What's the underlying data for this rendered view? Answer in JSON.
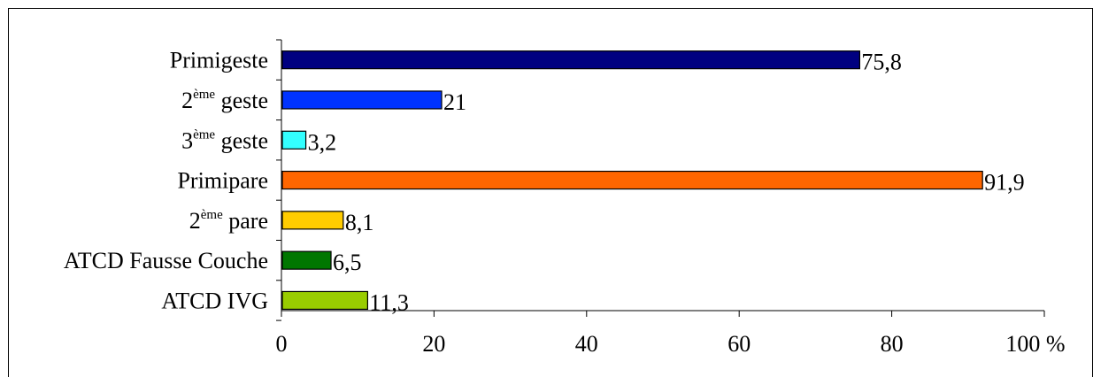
{
  "chart_data": {
    "type": "bar",
    "orientation": "horizontal",
    "categories": [
      {
        "pre": "Primigeste",
        "sup": "",
        "post": ""
      },
      {
        "pre": "2",
        "sup": "ème",
        "post": " geste"
      },
      {
        "pre": "3",
        "sup": "ème",
        "post": " geste"
      },
      {
        "pre": "Primipare",
        "sup": "",
        "post": ""
      },
      {
        "pre": "2",
        "sup": "ème",
        "post": " pare"
      },
      {
        "pre": "ATCD Fausse Couche",
        "sup": "",
        "post": ""
      },
      {
        "pre": "ATCD IVG",
        "sup": "",
        "post": ""
      }
    ],
    "values": [
      75.8,
      21,
      3.2,
      91.9,
      8.1,
      6.5,
      11.3
    ],
    "value_labels": [
      "75,8",
      "21",
      "3,2",
      "91,9",
      "8,1",
      "6,5",
      "11,3"
    ],
    "colors": [
      "#000080",
      "#0033FF",
      "#33FFFF",
      "#FF6600",
      "#FFCC00",
      "#007700",
      "#99CC00"
    ],
    "xlim": [
      0,
      100
    ],
    "xticks": [
      "0",
      "20",
      "40",
      "60",
      "80",
      "100 %"
    ],
    "grid": false
  }
}
